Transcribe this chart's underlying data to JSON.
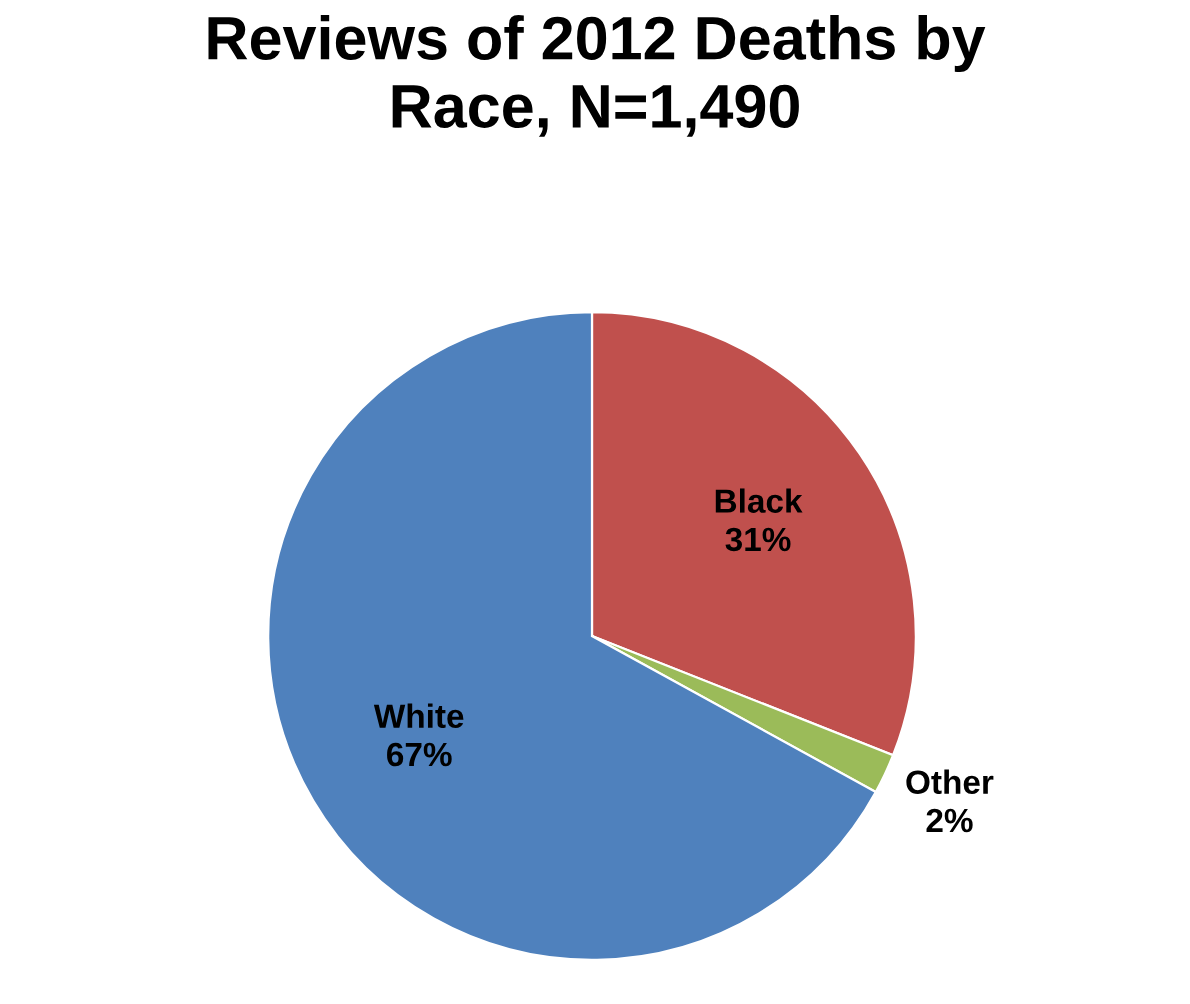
{
  "chart_data": {
    "type": "pie",
    "title": "Reviews of 2012 Deaths by\nRace, N=1,490",
    "categories": [
      "Black",
      "Other",
      "White"
    ],
    "values": [
      31,
      2,
      67
    ],
    "value_labels": [
      "31%",
      "2%",
      "67%"
    ],
    "colors": [
      "#c0504d",
      "#9bbb59",
      "#4f81bd"
    ],
    "legend": false
  }
}
